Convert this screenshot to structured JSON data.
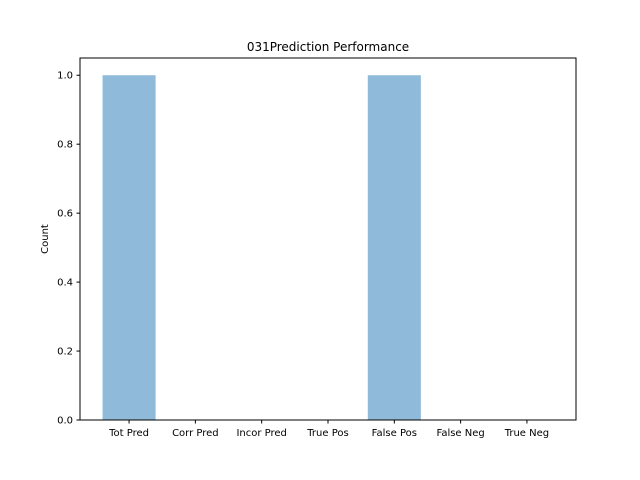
{
  "chart_data": {
    "type": "bar",
    "title": "031Prediction Performance",
    "xlabel": "",
    "ylabel": "Count",
    "categories": [
      "Tot Pred",
      "Corr Pred",
      "Incor Pred",
      "True Pos",
      "False Pos",
      "False Neg",
      "True Neg"
    ],
    "values": [
      1,
      0,
      0,
      0,
      1,
      0,
      0
    ],
    "ylim": [
      0,
      1.05
    ],
    "yticks": [
      "0.0",
      "0.2",
      "0.4",
      "0.6",
      "0.8",
      "1.0"
    ],
    "bar_color": "#8fbad9",
    "grid": false,
    "legend": "none"
  }
}
